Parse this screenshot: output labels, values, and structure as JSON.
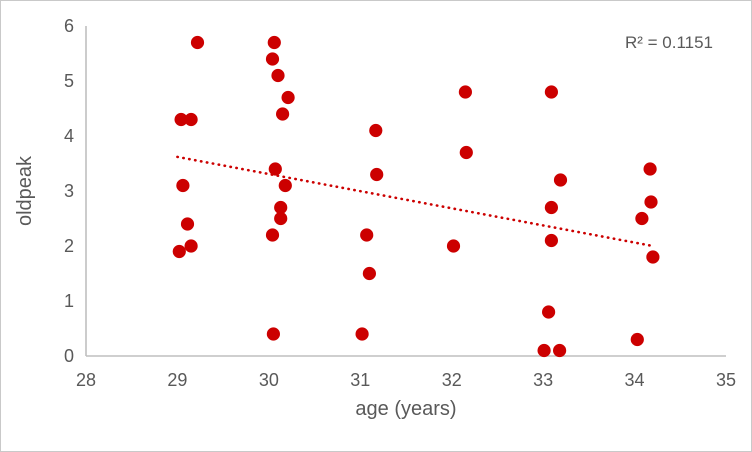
{
  "chart_data": {
    "type": "scatter",
    "title": "",
    "xlabel": "age (years)",
    "ylabel": "oldpeak",
    "xlim": [
      28,
      35
    ],
    "ylim": [
      0,
      6
    ],
    "xticks": [
      28,
      29,
      30,
      31,
      32,
      33,
      34,
      35
    ],
    "yticks": [
      0,
      1,
      2,
      3,
      4,
      5,
      6
    ],
    "grid": false,
    "legend": false,
    "annotation": {
      "text": "R² = 0.1151",
      "r_squared": 0.1151
    },
    "series": [
      {
        "name": "oldpeak",
        "marker": "circle",
        "color": "#cc0000",
        "points": [
          [
            29.02,
            1.9
          ],
          [
            29.15,
            2.0
          ],
          [
            29.11,
            2.4
          ],
          [
            29.06,
            3.1
          ],
          [
            29.04,
            4.3
          ],
          [
            29.15,
            4.3
          ],
          [
            29.22,
            5.7
          ],
          [
            30.05,
            0.4
          ],
          [
            30.04,
            2.2
          ],
          [
            30.13,
            2.5
          ],
          [
            30.13,
            2.7
          ],
          [
            30.18,
            3.1
          ],
          [
            30.07,
            3.4
          ],
          [
            30.15,
            4.4
          ],
          [
            30.21,
            4.7
          ],
          [
            30.1,
            5.1
          ],
          [
            30.04,
            5.4
          ],
          [
            30.06,
            5.7
          ],
          [
            31.02,
            0.4
          ],
          [
            31.1,
            1.5
          ],
          [
            31.07,
            2.2
          ],
          [
            31.18,
            3.3
          ],
          [
            31.17,
            4.1
          ],
          [
            32.02,
            2.0
          ],
          [
            32.16,
            3.7
          ],
          [
            32.15,
            4.8
          ],
          [
            33.01,
            0.1
          ],
          [
            33.18,
            0.1
          ],
          [
            33.06,
            0.8
          ],
          [
            33.09,
            2.1
          ],
          [
            33.09,
            2.7
          ],
          [
            33.19,
            3.2
          ],
          [
            33.09,
            4.8
          ],
          [
            34.03,
            0.3
          ],
          [
            34.2,
            1.8
          ],
          [
            34.08,
            2.5
          ],
          [
            34.18,
            2.8
          ],
          [
            34.17,
            3.4
          ]
        ]
      }
    ],
    "trendline": {
      "type": "linear",
      "style": "dotted",
      "color": "#cc0000",
      "x1": 29.0,
      "y1": 3.62,
      "x2": 34.2,
      "y2": 2.0
    }
  },
  "colors": {
    "point": "#cc0000",
    "trendline": "#cc0000",
    "axis_line": "#bfbfbf",
    "text": "#595959",
    "frame_border": "#c9c9c9",
    "background": "#ffffff"
  }
}
